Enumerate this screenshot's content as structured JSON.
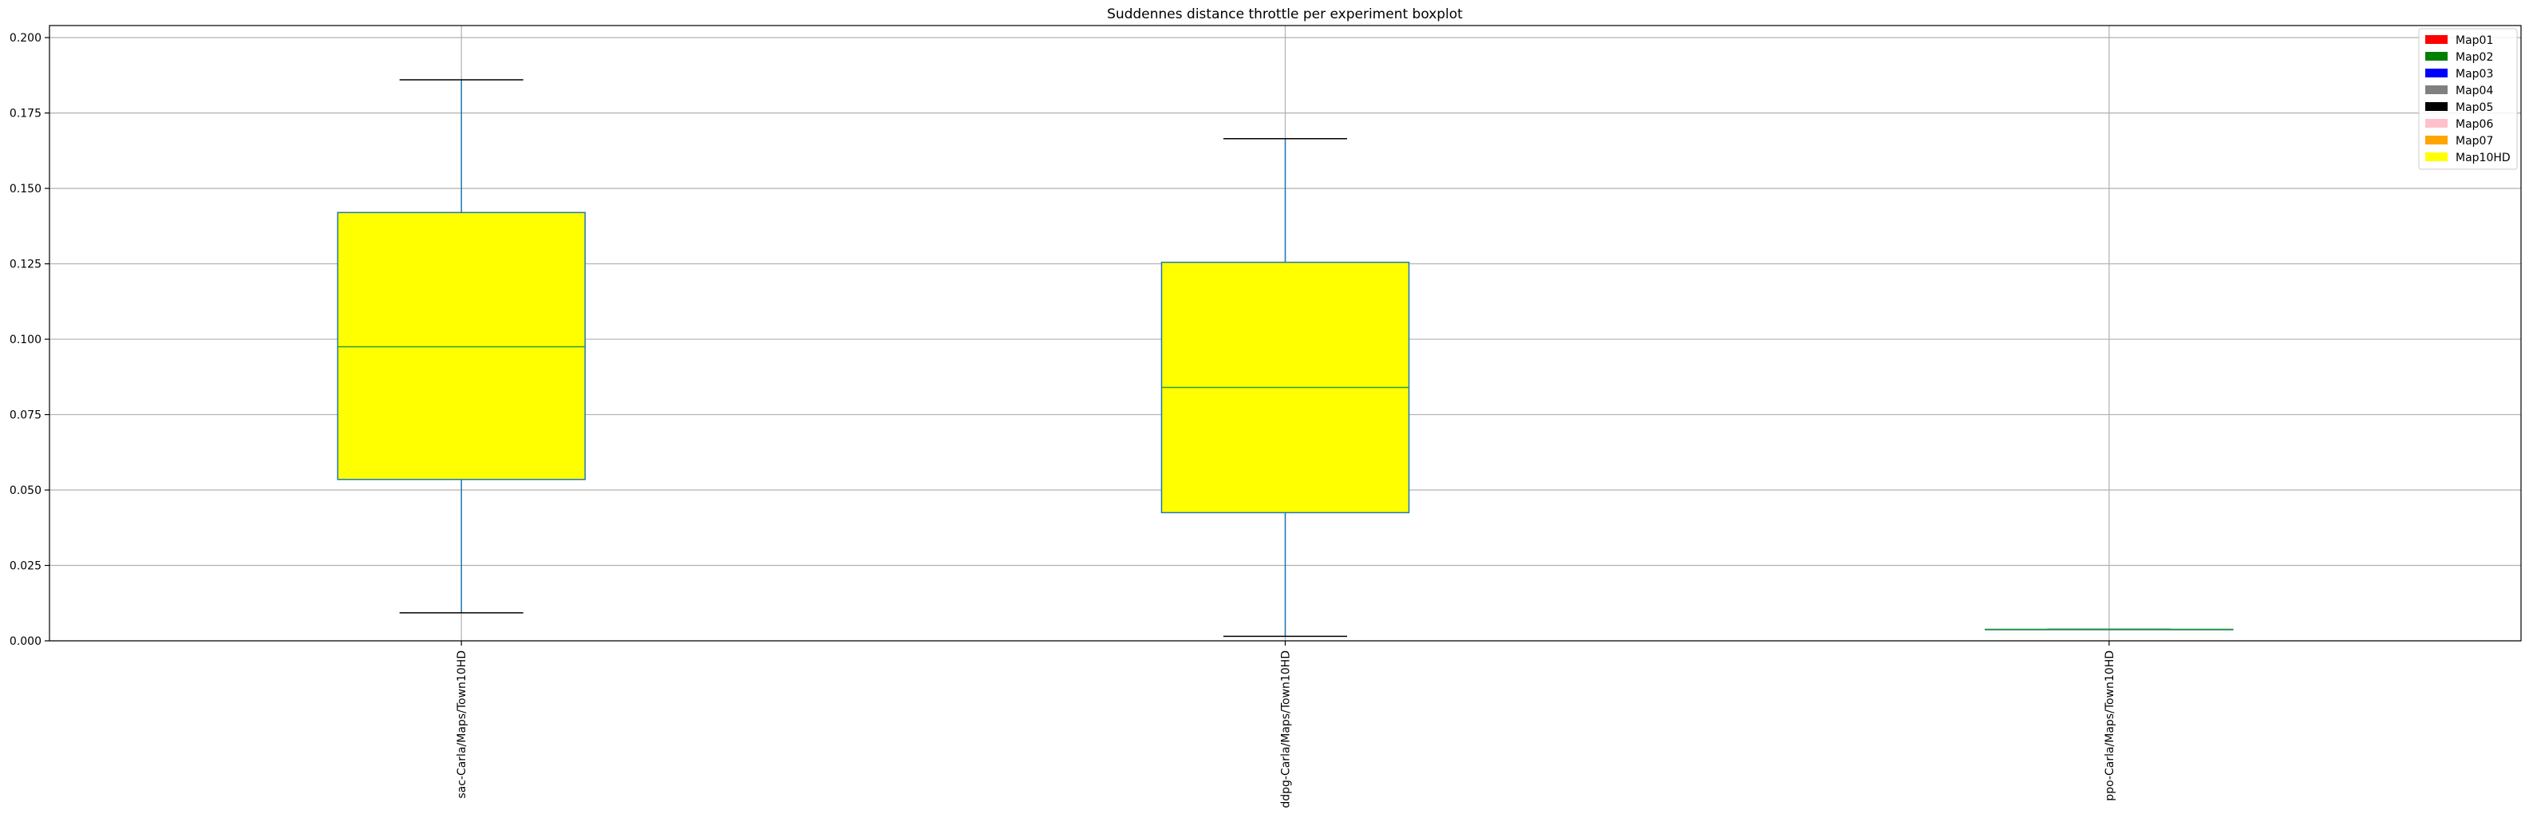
{
  "chart_data": {
    "type": "boxplot",
    "title": "Suddennes distance throttle per experiment boxplot",
    "xlabel": "",
    "ylabel": "",
    "ylim": [
      0,
      0.204
    ],
    "yticks": [
      "0.000",
      "0.025",
      "0.050",
      "0.075",
      "0.100",
      "0.125",
      "0.150",
      "0.175",
      "0.200"
    ],
    "grid": true,
    "legend_position": "top-right",
    "categories": [
      "sac-Carla/Maps/Town10HD",
      "ddpg-Carla/Maps/Town10HD",
      "ppo-Carla/Maps/Town10HD"
    ],
    "boxes": [
      {
        "whisker_low": 0.0093,
        "q1": 0.0535,
        "median": 0.0975,
        "q3": 0.142,
        "whisker_high": 0.186
      },
      {
        "whisker_low": 0.0015,
        "q1": 0.0425,
        "median": 0.084,
        "q3": 0.1255,
        "whisker_high": 0.1665
      },
      {
        "whisker_low": 0.0038,
        "q1": 0.0038,
        "median": 0.0038,
        "q3": 0.0038,
        "whisker_high": 0.0038
      }
    ],
    "box_fill": "#ffff00",
    "box_edge_color": "#1f77b4",
    "median_color": "#2ca02c",
    "cap_color": "#000000",
    "legend": [
      {
        "label": "Map01",
        "color": "#ff0000"
      },
      {
        "label": "Map02",
        "color": "#008000"
      },
      {
        "label": "Map03",
        "color": "#0000ff"
      },
      {
        "label": "Map04",
        "color": "#808080"
      },
      {
        "label": "Map05",
        "color": "#000000"
      },
      {
        "label": "Map06",
        "color": "#ffc0cb"
      },
      {
        "label": "Map07",
        "color": "#ffa500"
      },
      {
        "label": "Map10HD",
        "color": "#ffff00"
      }
    ]
  }
}
